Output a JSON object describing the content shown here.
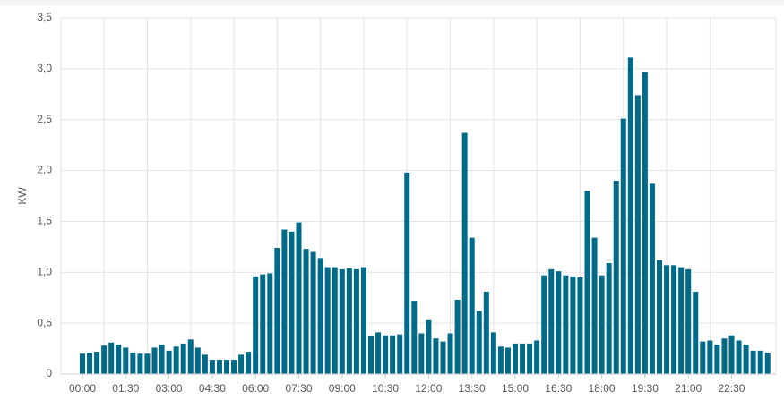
{
  "chart_data": {
    "type": "bar",
    "y_label": "KW",
    "color": "#006a89",
    "categories": [
      "00:00",
      null,
      null,
      null,
      null,
      null,
      "01:30",
      null,
      null,
      null,
      null,
      null,
      "03:00",
      null,
      null,
      null,
      null,
      null,
      "04:30",
      null,
      null,
      null,
      null,
      null,
      "06:00",
      null,
      null,
      null,
      null,
      null,
      "07:30",
      null,
      null,
      null,
      null,
      null,
      "09:00",
      null,
      null,
      null,
      null,
      null,
      "10:30",
      null,
      null,
      null,
      null,
      null,
      "12:00",
      null,
      null,
      null,
      null,
      null,
      "13:30",
      null,
      null,
      null,
      null,
      null,
      "15:00",
      null,
      null,
      null,
      null,
      null,
      "16:30",
      null,
      null,
      null,
      null,
      null,
      "18:00",
      null,
      null,
      null,
      null,
      null,
      "19:30",
      null,
      null,
      null,
      null,
      null,
      "21:00",
      null,
      null,
      null,
      null,
      null,
      "22:30",
      null,
      null,
      null,
      null,
      null
    ],
    "values": [
      0.2,
      0.21,
      0.22,
      0.28,
      0.31,
      0.29,
      0.26,
      0.21,
      0.2,
      0.2,
      0.26,
      0.29,
      0.23,
      0.27,
      0.3,
      0.34,
      0.26,
      0.19,
      0.14,
      0.14,
      0.14,
      0.14,
      0.19,
      0.22,
      0.96,
      0.98,
      0.99,
      1.24,
      1.42,
      1.4,
      1.49,
      1.23,
      1.2,
      1.14,
      1.05,
      1.05,
      1.03,
      1.04,
      1.03,
      1.05,
      0.37,
      0.41,
      0.38,
      0.38,
      0.39,
      1.98,
      0.72,
      0.4,
      0.53,
      0.35,
      0.32,
      0.4,
      0.73,
      2.37,
      1.34,
      0.62,
      0.81,
      0.41,
      0.27,
      0.26,
      0.3,
      0.3,
      0.3,
      0.33,
      0.97,
      1.03,
      1.01,
      0.97,
      0.96,
      0.95,
      1.8,
      1.34,
      0.97,
      1.09,
      1.9,
      2.51,
      3.11,
      2.74,
      2.97,
      1.87,
      1.12,
      1.07,
      1.07,
      1.05,
      1.03,
      0.81,
      0.32,
      0.33,
      0.29,
      0.35,
      0.38,
      0.33,
      0.29,
      0.23,
      0.23,
      0.21
    ],
    "ylim": [
      0,
      3.5
    ],
    "yticks": [
      0,
      {
        "value": 0.5,
        "label": "0,5"
      },
      {
        "value": 1,
        "label": "1,0"
      },
      {
        "value": 1.5,
        "label": "1,5"
      },
      {
        "value": 2,
        "label": "2,0"
      },
      {
        "value": 2.5,
        "label": "2,5"
      },
      {
        "value": 3,
        "label": "3,0"
      },
      {
        "value": 3.5,
        "label": "3,5"
      }
    ],
    "grid": true
  }
}
